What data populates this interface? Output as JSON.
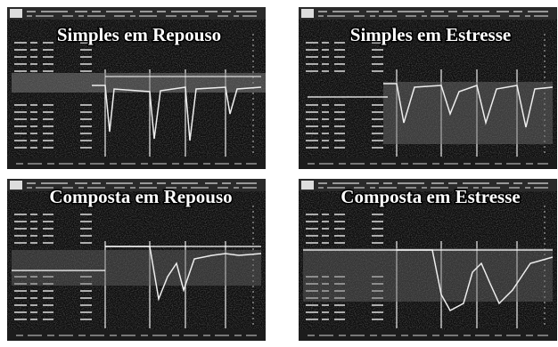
{
  "panels": [
    {
      "title": "Simples em Repouso"
    },
    {
      "title": "Simples em Estresse"
    },
    {
      "title": "Composta em Repouso"
    },
    {
      "title": "Composta em Estresse"
    }
  ]
}
